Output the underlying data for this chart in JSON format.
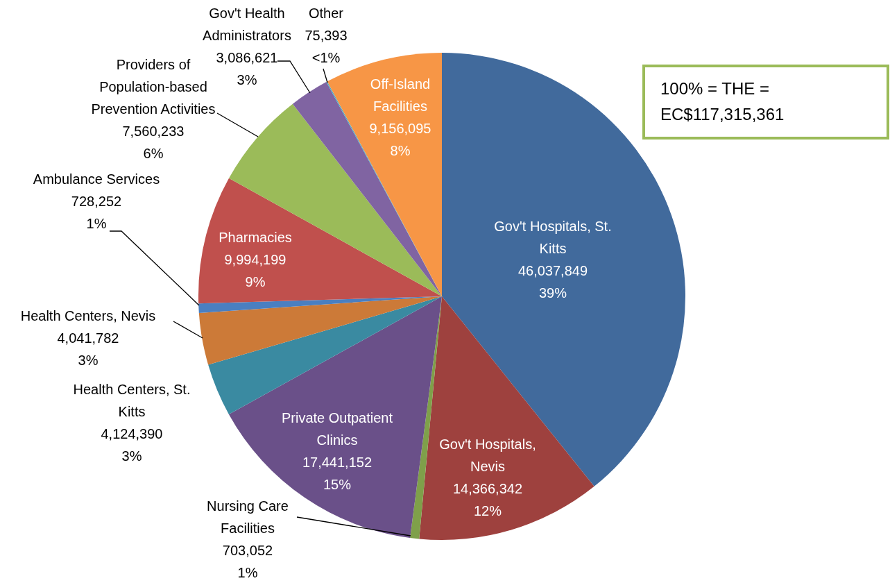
{
  "chart_data": {
    "type": "pie",
    "categories": [
      "Gov't Hospitals, St. Kitts",
      "Gov't Hospitals, Nevis",
      "Nursing Care Facilities",
      "Private Outpatient Clinics",
      "Health Centers, St. Kitts",
      "Health Centers, Nevis",
      "Ambulance Services",
      "Pharmacies",
      "Providers of Population-based Prevention Activities",
      "Gov't Health Administrators",
      "Other",
      "Off-Island Facilities"
    ],
    "values": [
      46037849,
      14366342,
      703052,
      17441152,
      4124390,
      4041782,
      728252,
      9994199,
      7560233,
      3086621,
      75393,
      9156095
    ],
    "value_labels": [
      "46,037,849\n39%",
      "14,366,342\n12%",
      "703,052\n1%",
      "17,441,152\n15%",
      "4,124,390\n3%",
      "4,041,782\n3%",
      "728,252\n1%",
      "9,994,199\n9%",
      "7,560,233\n6%",
      "3,086,621\n3%",
      "75,393\n<1%",
      "9,156,095\n8%"
    ],
    "colors": [
      "#416a9c",
      "#9e413e",
      "#7fa04a",
      "#6a5089",
      "#3a8aa1",
      "#cc7a38",
      "#4a7fc1",
      "#c0504d",
      "#9bbb59",
      "#8064a2",
      "#4bacc6",
      "#f79646"
    ],
    "annotations": [
      "100% = THE = EC$117,315,361"
    ]
  }
}
